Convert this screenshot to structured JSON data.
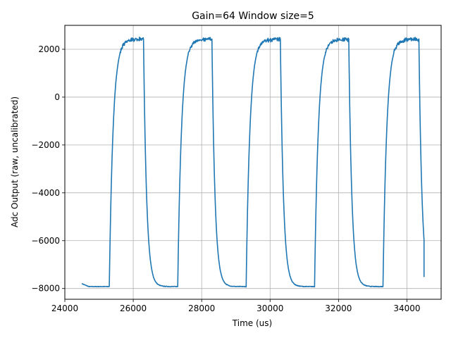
{
  "chart_data": {
    "type": "line",
    "title": "Gain=64 Window size=5",
    "xlabel": "Time (us)",
    "ylabel": "Adc Output (raw, uncalibrated)",
    "xlim": [
      24000,
      35000
    ],
    "ylim": [
      -8450,
      3000
    ],
    "xticks": [
      24000,
      26000,
      28000,
      30000,
      32000,
      34000
    ],
    "xtick_labels": [
      "24000",
      "26000",
      "28000",
      "30000",
      "32000",
      "34000"
    ],
    "yticks": [
      -8000,
      -6000,
      -4000,
      -2000,
      0,
      2000
    ],
    "ytick_labels": [
      "−8000",
      "−6000",
      "−4000",
      "−2000",
      "0",
      "2000"
    ],
    "grid": true,
    "series": [
      {
        "color": "#1f77b4",
        "waveform": {
          "description_free": true,
          "start_x": 24500,
          "start_y": -7800,
          "end_x": 34500,
          "end_y": -7520,
          "low_level": -7920,
          "high_level": 2420,
          "period": 2000,
          "rise_starts": [
            25300,
            27300,
            29300,
            31300,
            33300
          ],
          "fall_starts": [
            26300,
            28300,
            30300,
            32300,
            34350
          ]
        }
      }
    ]
  }
}
